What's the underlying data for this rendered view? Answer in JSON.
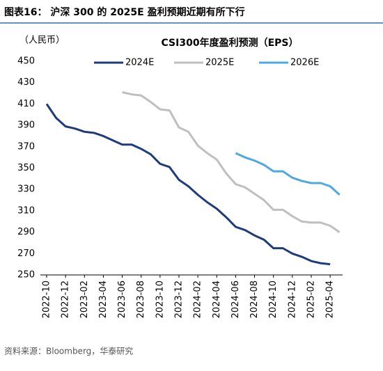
{
  "header": {
    "title": "图表16：  沪深 300 的 2025E 盈利预期近期有所下行"
  },
  "chart_data": {
    "type": "line",
    "title": "CSI300年度盈利预测（EPS）",
    "y_label": "（人民币）",
    "x": [
      "2022-10",
      "2022-11",
      "2022-12",
      "2023-01",
      "2023-02",
      "2023-03",
      "2023-04",
      "2023-05",
      "2023-06",
      "2023-07",
      "2023-08",
      "2023-09",
      "2023-10",
      "2023-11",
      "2023-12",
      "2024-01",
      "2024-02",
      "2024-03",
      "2024-04",
      "2024-05",
      "2024-06",
      "2024-07",
      "2024-08",
      "2024-09",
      "2024-10",
      "2024-11",
      "2024-12",
      "2025-01",
      "2025-02",
      "2025-03",
      "2025-04",
      "2025-05"
    ],
    "xticks": [
      "2022-10",
      "2022-12",
      "2023-02",
      "2023-04",
      "2023-06",
      "2023-08",
      "2023-10",
      "2023-12",
      "2024-02",
      "2024-04",
      "2024-06",
      "2024-08",
      "2024-10",
      "2024-12",
      "2025-02",
      "2025-04"
    ],
    "ylim": [
      250,
      450
    ],
    "yticks": [
      250,
      270,
      290,
      310,
      330,
      350,
      370,
      390,
      410,
      430,
      450
    ],
    "legend": "top",
    "series": [
      {
        "name": "2024E",
        "color": "#1f3b7a",
        "values": [
          410,
          397,
          389,
          387,
          384,
          383,
          380,
          376,
          372,
          372,
          368,
          363,
          354,
          351,
          339,
          333,
          325,
          318,
          312,
          304,
          295,
          292,
          287,
          283,
          275,
          275,
          270,
          267,
          263,
          261,
          260,
          null
        ]
      },
      {
        "name": "2025E",
        "color": "#bfbfbf",
        "values": [
          null,
          null,
          null,
          null,
          null,
          null,
          null,
          null,
          421,
          419,
          418,
          412,
          405,
          404,
          388,
          384,
          371,
          364,
          358,
          345,
          335,
          332,
          326,
          320,
          311,
          311,
          305,
          300,
          299,
          299,
          296,
          290
        ]
      },
      {
        "name": "2026E",
        "color": "#4fa8e0",
        "values": [
          null,
          null,
          null,
          null,
          null,
          null,
          null,
          null,
          null,
          null,
          null,
          null,
          null,
          null,
          null,
          null,
          null,
          null,
          null,
          null,
          364,
          360,
          357,
          353,
          347,
          347,
          341,
          338,
          336,
          336,
          333,
          325
        ]
      }
    ]
  },
  "source": "资料来源：Bloomberg，华泰研究"
}
